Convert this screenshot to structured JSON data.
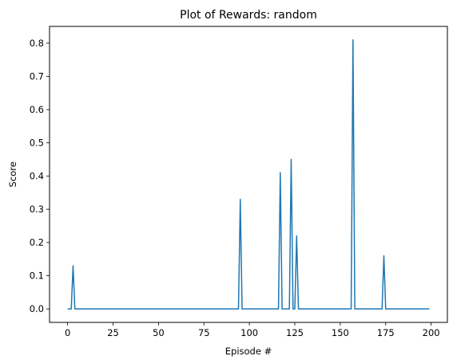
{
  "chart_data": {
    "type": "line",
    "title": "Plot of Rewards: random",
    "xlabel": "Episode #",
    "ylabel": "Score",
    "xlim": [
      -9.95,
      208.95
    ],
    "ylim": [
      -0.0405,
      0.8505
    ],
    "xticks": [
      0,
      25,
      50,
      75,
      100,
      125,
      150,
      175,
      200
    ],
    "yticks": [
      0.0,
      0.1,
      0.2,
      0.3,
      0.4,
      0.5,
      0.6,
      0.7,
      0.8
    ],
    "xtick_labels": [
      "0",
      "25",
      "50",
      "75",
      "100",
      "125",
      "150",
      "175",
      "200"
    ],
    "ytick_labels": [
      "0.0",
      "0.1",
      "0.2",
      "0.3",
      "0.4",
      "0.5",
      "0.6",
      "0.7",
      "0.8"
    ],
    "grid": false,
    "line_color": "#1f77b4",
    "x_start": 0,
    "x_end": 199,
    "baseline": 0.0,
    "nonzero_points": [
      {
        "x": 3,
        "y": 0.13
      },
      {
        "x": 95,
        "y": 0.33
      },
      {
        "x": 117,
        "y": 0.41
      },
      {
        "x": 123,
        "y": 0.45
      },
      {
        "x": 126,
        "y": 0.22
      },
      {
        "x": 157,
        "y": 0.81
      },
      {
        "x": 174,
        "y": 0.16
      }
    ]
  }
}
